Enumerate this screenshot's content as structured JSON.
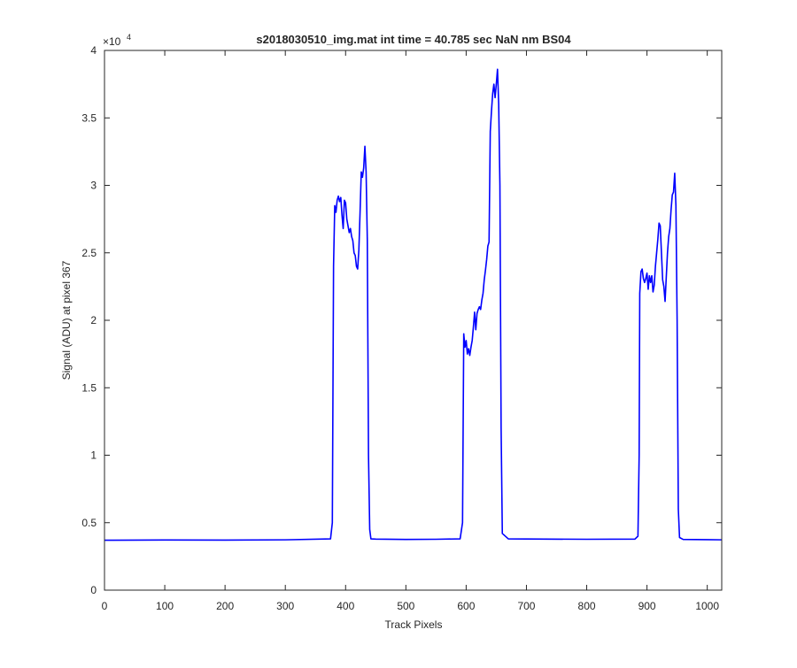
{
  "figure": {
    "title": "s2018030510_img.mat int time = 40.785 sec  NaN nm BS04",
    "xlabel": "Track Pixels",
    "ylabel": "Signal (ADU) at pixel 367",
    "y_exponent_base": "×10",
    "y_exponent_power": "4"
  },
  "colors": {
    "line": "#0000ff",
    "axes": "#262626",
    "background": "#ffffff"
  },
  "chart_data": {
    "type": "line",
    "title": "s2018030510_img.mat int time = 40.785 sec  NaN nm BS04",
    "xlabel": "Track Pixels",
    "ylabel": "Signal (ADU) at pixel 367",
    "xlim": [
      0,
      1024
    ],
    "ylim": [
      0,
      40000
    ],
    "y_scale_factor": 10000,
    "xticks": [
      0,
      100,
      200,
      300,
      400,
      500,
      600,
      700,
      800,
      900,
      1000
    ],
    "xtick_labels": [
      "0",
      "100",
      "200",
      "300",
      "400",
      "500",
      "600",
      "700",
      "800",
      "900",
      "1000"
    ],
    "yticks": [
      0,
      5000,
      10000,
      15000,
      20000,
      25000,
      30000,
      35000,
      40000
    ],
    "ytick_labels": [
      "0",
      "0.5",
      "1",
      "1.5",
      "2",
      "2.5",
      "3",
      "3.5",
      "4"
    ],
    "grid": false,
    "series": [
      {
        "color": "#0000ff",
        "x": [
          0,
          100,
          200,
          300,
          375,
          378,
          380,
          382,
          384,
          386,
          388,
          390,
          392,
          394,
          396,
          398,
          400,
          402,
          404,
          406,
          408,
          410,
          412,
          414,
          416,
          418,
          420,
          422,
          424,
          426,
          428,
          430,
          432,
          434,
          436,
          438,
          440,
          442,
          450,
          500,
          550,
          590,
          594,
          596,
          598,
          600,
          602,
          604,
          606,
          608,
          610,
          612,
          614,
          616,
          618,
          620,
          622,
          624,
          626,
          628,
          630,
          632,
          634,
          636,
          638,
          640,
          642,
          644,
          646,
          648,
          650,
          652,
          654,
          656,
          658,
          660,
          670,
          700,
          800,
          880,
          885,
          887,
          888,
          890,
          892,
          894,
          896,
          898,
          900,
          902,
          904,
          906,
          908,
          910,
          912,
          914,
          916,
          918,
          920,
          922,
          924,
          926,
          928,
          930,
          932,
          934,
          936,
          938,
          940,
          942,
          944,
          946,
          948,
          950,
          952,
          954,
          960,
          1000,
          1024
        ],
        "y": [
          3700,
          3720,
          3710,
          3730,
          3800,
          5000,
          24000,
          28500,
          28000,
          28900,
          29200,
          28800,
          29100,
          27800,
          26800,
          28900,
          28700,
          27500,
          27000,
          26500,
          26800,
          26200,
          25900,
          25000,
          24800,
          24000,
          23800,
          25200,
          28000,
          31000,
          30600,
          31300,
          32900,
          31000,
          26000,
          10000,
          4500,
          3800,
          3780,
          3760,
          3770,
          3800,
          5000,
          19000,
          18000,
          18500,
          17500,
          17900,
          17400,
          18000,
          18500,
          19500,
          20600,
          19300,
          20500,
          20800,
          21000,
          20800,
          21500,
          22000,
          23000,
          23700,
          24500,
          25500,
          25800,
          34000,
          35500,
          36800,
          37500,
          36500,
          37500,
          38600,
          36000,
          30000,
          12000,
          4200,
          3800,
          3790,
          3770,
          3780,
          4000,
          10000,
          22000,
          23600,
          23800,
          23100,
          22800,
          23100,
          23500,
          22300,
          23300,
          22800,
          23300,
          22100,
          22600,
          24000,
          25000,
          26000,
          27200,
          27000,
          25000,
          23000,
          22500,
          21400,
          23200,
          25000,
          26200,
          26800,
          28200,
          29300,
          29500,
          30900,
          28500,
          20000,
          6000,
          3900,
          3760,
          3740,
          3730
        ]
      }
    ]
  }
}
